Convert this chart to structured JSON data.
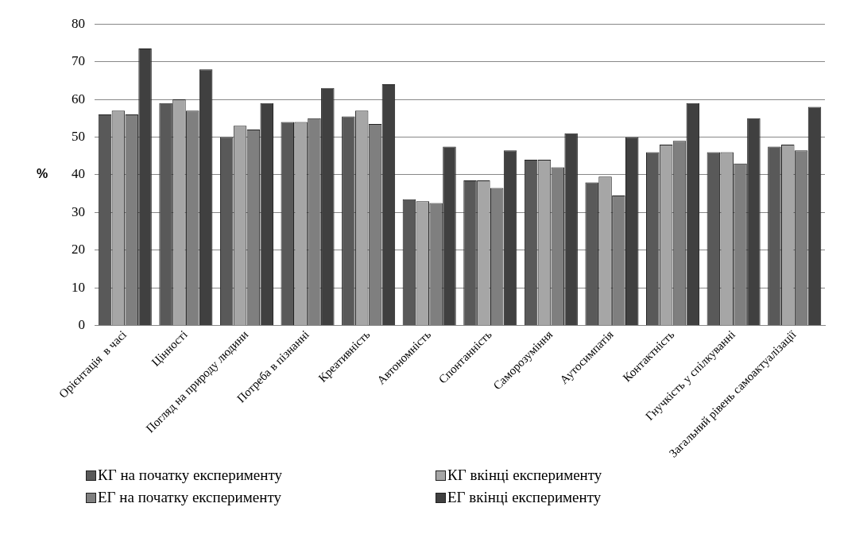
{
  "chart_data": {
    "type": "bar",
    "ylabel": "%",
    "categories": [
      "Орієнтація  в часі",
      "Цінності",
      "Погляд на природу людини",
      "Потреба в пізнанні",
      "Креативність",
      "Автономність",
      "Спонтанність",
      "Саморозуміння",
      "Аутосимпатія",
      "Контактність",
      "Гнучкість у спілкуванні",
      "Загальний рівень самоактуалізації"
    ],
    "series": [
      {
        "name": "КГ на початку експерименту",
        "color": "#595959",
        "values": [
          56,
          59,
          50,
          54,
          55.5,
          33.5,
          38.5,
          44,
          38,
          46,
          46,
          47.5
        ]
      },
      {
        "name": "КГ вкінці  експерименту",
        "color": "#a6a6a6",
        "values": [
          57,
          60,
          53,
          54,
          57,
          33,
          38.5,
          44,
          39.5,
          48,
          46,
          48
        ]
      },
      {
        "name": "ЕГ на початку експерименту",
        "color": "#7f7f7f",
        "values": [
          56,
          57,
          52,
          55,
          53.5,
          32.5,
          36.5,
          42,
          34.5,
          49,
          43,
          46.5
        ]
      },
      {
        "name": "ЕГ вкінці  експерименту",
        "color": "#404040",
        "values": [
          73.5,
          68,
          59,
          63,
          64,
          47.5,
          46.5,
          51,
          50,
          59,
          55,
          58
        ]
      }
    ],
    "ylim": [
      0,
      80
    ],
    "yticks": [
      0,
      10,
      20,
      30,
      40,
      50,
      60,
      70,
      80
    ],
    "grid": "y",
    "legend": "bottom"
  }
}
